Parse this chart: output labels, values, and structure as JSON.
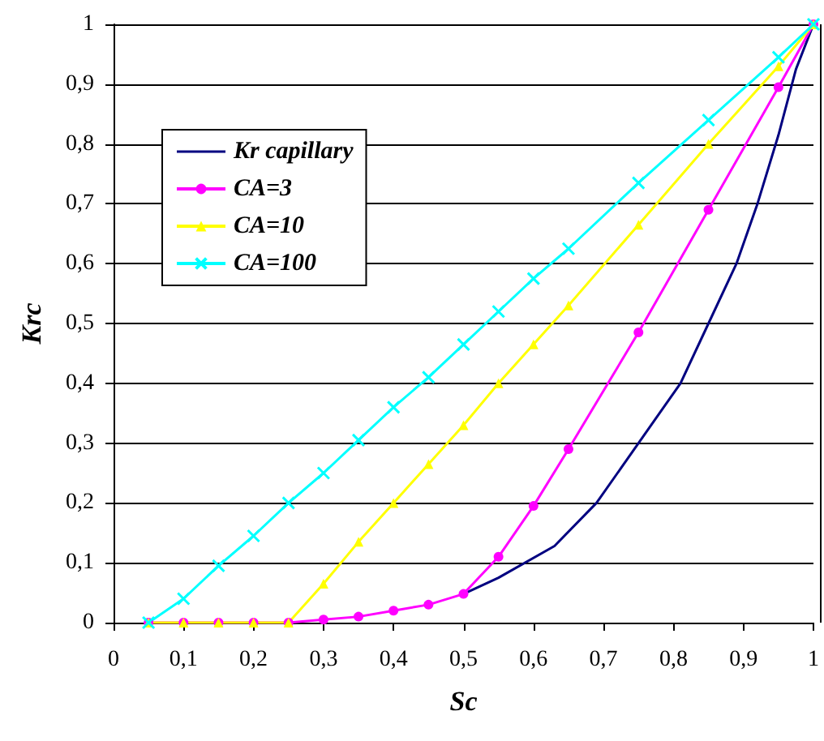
{
  "chart_data": {
    "type": "line",
    "xlabel": "Sc",
    "ylabel": "Krc",
    "x": [
      0.05,
      0.1,
      0.15,
      0.2,
      0.25,
      0.3,
      0.35,
      0.4,
      0.45,
      0.5,
      0.55,
      0.6,
      0.65,
      0.75,
      0.85,
      0.95,
      1
    ],
    "series": [
      {
        "name": "Kr capillary",
        "color": "#000080",
        "marker": "none",
        "x": [
          0.5,
          0.55,
          0.63,
          0.69,
          0.75,
          0.81,
          0.85,
          0.89,
          0.92,
          0.95,
          0.975,
          1
        ],
        "values": [
          0.048,
          0.075,
          0.128,
          0.2,
          0.3,
          0.4,
          0.5,
          0.6,
          0.7,
          0.815,
          0.925,
          1
        ]
      },
      {
        "name": "CA=3",
        "color": "#ff00ff",
        "marker": "circle",
        "values": [
          0,
          0,
          0,
          0,
          0,
          0.005,
          0.01,
          0.02,
          0.03,
          0.048,
          0.11,
          0.195,
          0.29,
          0.485,
          0.69,
          0.895,
          1
        ]
      },
      {
        "name": "CA=10",
        "color": "#ffff00",
        "marker": "triangle",
        "values": [
          0,
          0,
          0,
          0,
          0,
          0.065,
          0.135,
          0.2,
          0.265,
          0.33,
          0.4,
          0.465,
          0.53,
          0.665,
          0.8,
          0.93,
          1
        ]
      },
      {
        "name": "CA=100",
        "color": "#00ffff",
        "marker": "cross",
        "values": [
          0,
          0.04,
          0.095,
          0.145,
          0.2,
          0.25,
          0.305,
          0.36,
          0.41,
          0.465,
          0.52,
          0.575,
          0.625,
          0.735,
          0.84,
          0.945,
          1
        ]
      }
    ],
    "xlim": [
      0,
      1
    ],
    "xticks": [
      0,
      {
        "value": 0.1,
        "label": "0,1"
      },
      {
        "value": 0.2,
        "label": "0,2"
      },
      {
        "value": 0.3,
        "label": "0,3"
      },
      {
        "value": 0.4,
        "label": "0,4"
      },
      {
        "value": 0.5,
        "label": "0,5"
      },
      {
        "value": 0.6,
        "label": "0,6"
      },
      {
        "value": 0.7,
        "label": "0,7"
      },
      {
        "value": 0.8,
        "label": "0,8"
      },
      {
        "value": 0.9,
        "label": "0,9"
      },
      1
    ],
    "ylim": [
      0,
      1
    ],
    "yticks": [
      0,
      {
        "value": 0.1,
        "label": "0,1"
      },
      {
        "value": 0.2,
        "label": "0,2"
      },
      {
        "value": 0.3,
        "label": "0,3"
      },
      {
        "value": 0.4,
        "label": "0,4"
      },
      {
        "value": 0.5,
        "label": "0,5"
      },
      {
        "value": 0.6,
        "label": "0,6"
      },
      {
        "value": 0.7,
        "label": "0,7"
      },
      {
        "value": 0.8,
        "label": "0,8"
      },
      {
        "value": 0.9,
        "label": "0,9"
      },
      1
    ],
    "grid": "y",
    "legend": "top left"
  }
}
